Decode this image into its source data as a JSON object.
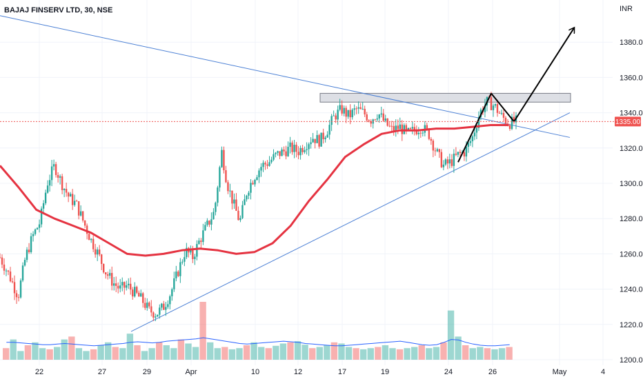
{
  "header": {
    "title": "BAJAJ FINSERV LTD, 30, NSE",
    "currency": "INR"
  },
  "colors": {
    "up": "#26a69a",
    "down": "#ef5350",
    "ma": "#e53341",
    "trendline": "#4a7fd4",
    "volume_ma": "#2962ff",
    "zone_fill": "#d1d4dc",
    "arrow": "#000000",
    "grid": "#f0f3fa"
  },
  "chart_data": {
    "type": "candlestick",
    "title": "BAJAJ FINSERV LTD, 30, NSE",
    "timeframe": "30",
    "exchange": "NSE",
    "ylim": [
      1200,
      1400
    ],
    "y_ticks": [
      1200,
      1220,
      1240,
      1260,
      1280,
      1300,
      1320,
      1340,
      1360,
      1380
    ],
    "x_ticks": [
      "22",
      "27",
      "29",
      "Apr",
      "10",
      "12",
      "17",
      "19",
      "24",
      "26",
      "May",
      "4"
    ],
    "last_price": "1335.00",
    "price_path": [
      [
        0,
        1258
      ],
      [
        0.05,
        1248
      ],
      [
        0.1,
        1236
      ],
      [
        0.14,
        1258
      ],
      [
        0.18,
        1270
      ],
      [
        0.22,
        1278
      ],
      [
        0.26,
        1300
      ],
      [
        0.3,
        1310
      ],
      [
        0.34,
        1300
      ],
      [
        0.38,
        1292
      ],
      [
        0.42,
        1288
      ],
      [
        0.46,
        1278
      ],
      [
        0.5,
        1268
      ],
      [
        0.54,
        1260
      ],
      [
        0.58,
        1250
      ],
      [
        0.62,
        1244
      ],
      [
        0.66,
        1240
      ],
      [
        0.7,
        1242
      ],
      [
        0.74,
        1238
      ],
      [
        0.78,
        1234
      ],
      [
        0.82,
        1228
      ],
      [
        0.86,
        1226
      ],
      [
        0.9,
        1230
      ],
      [
        0.94,
        1238
      ],
      [
        0.98,
        1250
      ],
      [
        1.02,
        1262
      ],
      [
        1.06,
        1258
      ],
      [
        1.1,
        1268
      ],
      [
        1.14,
        1276
      ],
      [
        1.18,
        1284
      ],
      [
        1.22,
        1318
      ],
      [
        1.25,
        1300
      ],
      [
        1.28,
        1290
      ],
      [
        1.32,
        1278
      ],
      [
        1.36,
        1296
      ],
      [
        1.4,
        1304
      ],
      [
        1.44,
        1310
      ],
      [
        1.48,
        1312
      ],
      [
        1.52,
        1316
      ],
      [
        1.56,
        1318
      ],
      [
        1.6,
        1320
      ],
      [
        1.64,
        1318
      ],
      [
        1.68,
        1322
      ],
      [
        1.72,
        1326
      ],
      [
        1.76,
        1324
      ],
      [
        1.8,
        1330
      ],
      [
        1.84,
        1338
      ],
      [
        1.88,
        1342
      ],
      [
        1.92,
        1338
      ],
      [
        1.96,
        1342
      ],
      [
        2.0,
        1340
      ],
      [
        2.04,
        1336
      ],
      [
        2.08,
        1340
      ],
      [
        2.12,
        1334
      ],
      [
        2.16,
        1330
      ],
      [
        2.2,
        1332
      ],
      [
        2.24,
        1328
      ],
      [
        2.28,
        1330
      ],
      [
        2.32,
        1332
      ],
      [
        2.36,
        1328
      ],
      [
        2.4,
        1318
      ],
      [
        2.44,
        1310
      ],
      [
        2.48,
        1312
      ],
      [
        2.52,
        1316
      ],
      [
        2.56,
        1318
      ],
      [
        2.6,
        1326
      ],
      [
        2.64,
        1340
      ],
      [
        2.68,
        1346
      ],
      [
        2.72,
        1344
      ],
      [
        2.76,
        1338
      ],
      [
        2.8,
        1334
      ],
      [
        2.84,
        1335
      ]
    ],
    "moving_average": [
      [
        0,
        1310
      ],
      [
        0.1,
        1298
      ],
      [
        0.2,
        1285
      ],
      [
        0.3,
        1280
      ],
      [
        0.4,
        1276
      ],
      [
        0.5,
        1272
      ],
      [
        0.6,
        1266
      ],
      [
        0.7,
        1260
      ],
      [
        0.8,
        1259
      ],
      [
        0.9,
        1260
      ],
      [
        1.0,
        1262
      ],
      [
        1.1,
        1263
      ],
      [
        1.2,
        1262
      ],
      [
        1.3,
        1260
      ],
      [
        1.4,
        1261
      ],
      [
        1.5,
        1266
      ],
      [
        1.6,
        1276
      ],
      [
        1.7,
        1290
      ],
      [
        1.8,
        1302
      ],
      [
        1.9,
        1315
      ],
      [
        2.0,
        1322
      ],
      [
        2.1,
        1328
      ],
      [
        2.2,
        1330
      ],
      [
        2.3,
        1330
      ],
      [
        2.4,
        1331
      ],
      [
        2.5,
        1331
      ],
      [
        2.6,
        1332
      ],
      [
        2.7,
        1333
      ],
      [
        2.8,
        1333
      ]
    ],
    "volume_path": [
      0.2,
      0.35,
      0.15,
      0.25,
      0.3,
      0.2,
      0.18,
      0.22,
      0.35,
      0.4,
      0.2,
      0.15,
      0.18,
      0.25,
      0.3,
      0.22,
      0.2,
      0.45,
      0.25,
      0.15,
      0.2,
      0.3,
      0.25,
      0.2,
      0.35,
      0.28,
      0.22,
      1.0,
      0.3,
      0.2,
      0.22,
      0.18,
      0.2,
      0.25,
      0.3,
      0.22,
      0.2,
      0.24,
      0.28,
      0.3,
      0.32,
      0.26,
      0.2,
      0.22,
      0.25,
      0.3,
      0.28,
      0.22,
      0.2,
      0.18,
      0.2,
      0.22,
      0.25,
      0.2,
      0.18,
      0.2,
      0.22,
      0.25,
      0.2,
      0.22,
      0.3,
      0.85,
      0.4,
      0.25,
      0.2,
      0.22,
      0.2,
      0.18,
      0.2,
      0.22
    ],
    "volume_ma": [
      0.3,
      0.3,
      0.29,
      0.28,
      0.27,
      0.26,
      0.26,
      0.27,
      0.28,
      0.27,
      0.26,
      0.25,
      0.24,
      0.25,
      0.26,
      0.27,
      0.28,
      0.3,
      0.31,
      0.3,
      0.29,
      0.3,
      0.32,
      0.33,
      0.34,
      0.35,
      0.36,
      0.38,
      0.36,
      0.34,
      0.32,
      0.3,
      0.28,
      0.27,
      0.28,
      0.29,
      0.3,
      0.31,
      0.32,
      0.31,
      0.3,
      0.28,
      0.27,
      0.26,
      0.25,
      0.24,
      0.24,
      0.25,
      0.26,
      0.27,
      0.28,
      0.29,
      0.3,
      0.31,
      0.32,
      0.3,
      0.28,
      0.26,
      0.25,
      0.26,
      0.3,
      0.35,
      0.34,
      0.3,
      0.27,
      0.25,
      0.24,
      0.24,
      0.25,
      0.26
    ]
  }
}
